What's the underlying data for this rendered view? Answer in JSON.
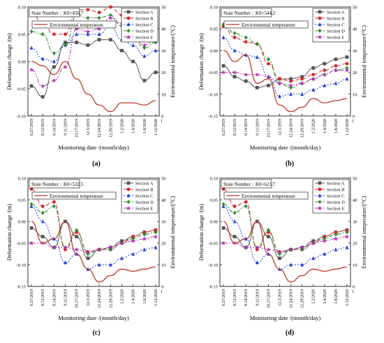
{
  "chart_data": [
    {
      "type": "line",
      "panel_label": "(a)",
      "station": "State Number :  K0+456.7",
      "xlabel": "Monitoring date /(month/day)",
      "ylabel": "Deformation change /(m)",
      "y2label": "Environmental temperature/(°C)",
      "categories": [
        "6.27/2019",
        "8.12/2019",
        "8.14/2019",
        "9.11/2019",
        "10.17/2019",
        "12.3/2019",
        "12.24/2019",
        "12.29/2019",
        "1.2/2020",
        "1.4/2020",
        "1.8/2020",
        "1.12/2020"
      ],
      "ylim": [
        -0.1,
        0.1
      ],
      "yticks": [
        "-0.10",
        "-0.05",
        "0.00",
        "0.05",
        "0.10"
      ],
      "y2lim": [
        0,
        50
      ],
      "y2ticks": [
        "0",
        "10",
        "20",
        "30",
        "40",
        "50"
      ],
      "x_end_label": "1",
      "series": [
        {
          "name": "Section A",
          "color": "#555555",
          "dash": "",
          "marker": "square",
          "axis": "left",
          "values": [
            -0.045,
            -0.065,
            -0.01,
            0.035,
            0.035,
            0.03,
            0.04,
            0.04,
            0.02,
            0.0,
            -0.035,
            -0.02
          ]
        },
        {
          "name": "Section B",
          "color": "#d62728",
          "dash": "6,3",
          "marker": "circle",
          "axis": "left",
          "values": [
            0.09,
            0.07,
            0.05,
            0.05,
            0.095,
            0.095,
            0.09,
            0.1,
            0.085,
            0.065,
            0.04,
            0.04
          ]
        },
        {
          "name": "Section C",
          "color": "#1f3fd6",
          "dash": "2,2",
          "marker": "triangle",
          "axis": "left",
          "values": [
            0.025,
            0.005,
            0.0,
            0.03,
            0.05,
            0.05,
            0.05,
            0.065,
            0.04,
            0.03,
            0.01,
            0.02
          ]
        },
        {
          "name": "Section D",
          "color": "#2e8b2e",
          "dash": "6,2,2,2",
          "marker": "diamond",
          "axis": "left",
          "values": [
            0.055,
            0.05,
            0.015,
            0.03,
            0.085,
            0.08,
            0.08,
            0.085,
            0.065,
            0.045,
            0.025,
            0.035
          ]
        },
        {
          "name": "Section E",
          "color": "#b030b0",
          "dash": "6,2,2,2,2,2",
          "marker": "star",
          "axis": "left",
          "values": [
            -0.015,
            -0.045,
            -0.035,
            -0.01,
            0.06,
            0.055,
            0.06,
            0.08,
            0.07,
            0.05,
            0.03,
            0.04
          ]
        },
        {
          "name": "Environmental temperature",
          "color": "#c0392b",
          "dash": "",
          "marker": "none",
          "axis": "right",
          "values": [
            25,
            23,
            19,
            25,
            17,
            10,
            5,
            2,
            6,
            6,
            5,
            7
          ]
        }
      ]
    },
    {
      "type": "line",
      "panel_label": "(b)",
      "station": "State Number :  K0+544.2",
      "xlabel": "Monitoring date /(month/day)",
      "ylabel": "Deformation change /(m)",
      "y2label": "Environmental temperature/(°C)",
      "categories": [
        "6.27/2019",
        "8.12/2019",
        "8.14/2019",
        "9.11/2019",
        "10.17/2019",
        "12.3/2019",
        "12.24/2019",
        "12.29/2019",
        "1.2/2020",
        "1.4/2020",
        "1.8/2020",
        "1.12/2020"
      ],
      "ylim": [
        -0.15,
        0.1
      ],
      "yticks": [
        "-0.15",
        "-0.10",
        "-0.05",
        "0.00",
        "0.05",
        "0.10"
      ],
      "y2lim": [
        0,
        50
      ],
      "y2ticks": [
        "0",
        "10",
        "20",
        "30",
        "40",
        "50"
      ],
      "x_end_label": "1",
      "series": [
        {
          "name": "Section A",
          "color": "#555555",
          "dash": "",
          "marker": "square",
          "axis": "left",
          "values": [
            -0.035,
            -0.06,
            -0.07,
            -0.085,
            -0.08,
            -0.065,
            -0.065,
            -0.06,
            -0.04,
            -0.03,
            -0.02,
            -0.015
          ]
        },
        {
          "name": "Section B",
          "color": "#d62728",
          "dash": "6,3",
          "marker": "circle",
          "axis": "left",
          "values": [
            0.055,
            0.03,
            0.02,
            0.015,
            -0.03,
            -0.065,
            -0.07,
            -0.065,
            -0.055,
            -0.045,
            -0.035,
            -0.03
          ]
        },
        {
          "name": "Section C",
          "color": "#1f3fd6",
          "dash": "2,2",
          "marker": "triangle",
          "axis": "left",
          "values": [
            0.03,
            0.0,
            -0.01,
            -0.015,
            -0.06,
            -0.105,
            -0.1,
            -0.1,
            -0.09,
            -0.08,
            -0.075,
            -0.065
          ]
        },
        {
          "name": "Section D",
          "color": "#2e8b2e",
          "dash": "6,2,2,2",
          "marker": "diamond",
          "axis": "left",
          "values": [
            0.06,
            0.04,
            0.03,
            0.015,
            -0.02,
            -0.075,
            -0.085,
            -0.075,
            -0.065,
            -0.055,
            -0.045,
            -0.04
          ]
        },
        {
          "name": "Section E",
          "color": "#b030b0",
          "dash": "6,2,2,2,2,2",
          "marker": "star",
          "axis": "left",
          "values": [
            -0.05,
            -0.05,
            -0.055,
            -0.055,
            -0.06,
            -0.075,
            -0.08,
            -0.075,
            -0.065,
            -0.055,
            -0.045,
            -0.045
          ]
        },
        {
          "name": "Environmental temperature",
          "color": "#c0392b",
          "dash": "",
          "marker": "none",
          "axis": "right",
          "values": [
            30,
            25,
            28,
            15,
            17,
            5,
            2,
            4,
            8,
            6,
            7,
            8
          ]
        }
      ]
    },
    {
      "type": "line",
      "panel_label": "(c)",
      "station": "State Number :  K0+532.5",
      "xlabel": "Monitoring date /(month/day)",
      "ylabel": "Deformation change /(m)",
      "y2label": "Environmental temperature/(°C)",
      "categories": [
        "6.27/2019",
        "8.12/2019",
        "8.14/2019",
        "9.11/2019",
        "10.17/2019",
        "12.3/2019",
        "12.24/2019",
        "12.29/2019",
        "1.2/2020",
        "1.4/2020",
        "1.8/2020",
        "1.12/2020"
      ],
      "ylim": [
        -0.15,
        0.1
      ],
      "yticks": [
        "-0.15",
        "-0.10",
        "-0.05",
        "0.00",
        "0.05",
        "0.10"
      ],
      "y2lim": [
        0,
        50
      ],
      "y2ticks": [
        "0",
        "10",
        "20",
        "30",
        "40",
        "50"
      ],
      "x_end_label": "1",
      "series": [
        {
          "name": "Section A",
          "color": "#555555",
          "dash": "",
          "marker": "square",
          "axis": "left",
          "values": [
            -0.015,
            -0.035,
            -0.06,
            0.0,
            -0.035,
            -0.085,
            -0.065,
            -0.06,
            -0.045,
            -0.035,
            -0.025,
            -0.02
          ]
        },
        {
          "name": "Section B",
          "color": "#d62728",
          "dash": "6,3",
          "marker": "circle",
          "axis": "left",
          "values": [
            0.075,
            0.035,
            0.045,
            -0.065,
            -0.025,
            -0.07,
            -0.065,
            -0.065,
            -0.05,
            -0.035,
            -0.025,
            -0.02
          ]
        },
        {
          "name": "Section C",
          "color": "#1f3fd6",
          "dash": "2,2",
          "marker": "triangle",
          "axis": "left",
          "values": [
            0.035,
            0.0,
            -0.04,
            -0.095,
            -0.075,
            -0.11,
            -0.1,
            -0.1,
            -0.085,
            -0.075,
            -0.065,
            -0.06
          ]
        },
        {
          "name": "Section D",
          "color": "#2e8b2e",
          "dash": "6,2,2,2",
          "marker": "diamond",
          "axis": "left",
          "values": [
            0.04,
            0.02,
            0.035,
            -0.06,
            -0.02,
            -0.075,
            -0.065,
            -0.065,
            -0.05,
            -0.04,
            -0.03,
            -0.025
          ]
        },
        {
          "name": "Section E",
          "color": "#b030b0",
          "dash": "6,2,2,2,2,2",
          "marker": "star",
          "axis": "left",
          "values": [
            -0.05,
            -0.05,
            -0.06,
            -0.06,
            -0.065,
            -0.07,
            -0.065,
            -0.06,
            -0.05,
            -0.045,
            -0.04,
            -0.035
          ]
        },
        {
          "name": "Environmental temperature",
          "color": "#c0392b",
          "dash": "",
          "marker": "none",
          "axis": "right",
          "values": [
            30,
            20,
            22,
            30,
            15,
            8,
            2,
            5,
            8,
            7,
            8,
            9
          ]
        }
      ]
    },
    {
      "type": "line",
      "panel_label": "(d)",
      "station": "State Number :  K0+621.7",
      "xlabel": "Monitoring date /(month/day)",
      "ylabel": "Deformation change /(m)",
      "y2label": "Environmental temperature/(°C)",
      "categories": [
        "6.27/2019",
        "8.12/2019",
        "8.14/2019",
        "9.11/2019",
        "10.17/2019",
        "12.3/2019",
        "12.24/2019",
        "12.29/2019",
        "1.2/2020",
        "1.4/2020",
        "1.8/2020",
        "1.12/2020"
      ],
      "ylim": [
        -0.15,
        0.1
      ],
      "yticks": [
        "-0.15",
        "-0.10",
        "-0.05",
        "0.00",
        "0.05",
        "0.10"
      ],
      "y2lim": [
        0,
        50
      ],
      "y2ticks": [
        "0",
        "10",
        "20",
        "30",
        "40",
        "50"
      ],
      "x_end_label": "1",
      "series": [
        {
          "name": "Section A",
          "color": "#555555",
          "dash": "",
          "marker": "square",
          "axis": "left",
          "values": [
            -0.015,
            -0.035,
            -0.06,
            0.0,
            -0.035,
            -0.085,
            -0.065,
            -0.06,
            -0.045,
            -0.035,
            -0.025,
            -0.02
          ]
        },
        {
          "name": "Section B",
          "color": "#d62728",
          "dash": "6,3",
          "marker": "circle",
          "axis": "left",
          "values": [
            0.075,
            0.035,
            0.045,
            -0.065,
            -0.025,
            -0.07,
            -0.065,
            -0.065,
            -0.05,
            -0.035,
            -0.025,
            -0.02
          ]
        },
        {
          "name": "Section C",
          "color": "#1f3fd6",
          "dash": "2,2",
          "marker": "triangle",
          "axis": "left",
          "values": [
            0.035,
            0.0,
            -0.04,
            -0.095,
            -0.075,
            -0.11,
            -0.1,
            -0.1,
            -0.085,
            -0.075,
            -0.065,
            -0.06
          ]
        },
        {
          "name": "Section D",
          "color": "#2e8b2e",
          "dash": "6,2,2,2",
          "marker": "diamond",
          "axis": "left",
          "values": [
            0.04,
            0.02,
            0.035,
            -0.06,
            -0.02,
            -0.075,
            -0.065,
            -0.065,
            -0.05,
            -0.04,
            -0.03,
            -0.025
          ]
        },
        {
          "name": "Section E",
          "color": "#b030b0",
          "dash": "6,2,2,2,2,2",
          "marker": "star",
          "axis": "left",
          "values": [
            -0.05,
            -0.05,
            -0.06,
            -0.06,
            -0.065,
            -0.07,
            -0.065,
            -0.06,
            -0.05,
            -0.045,
            -0.04,
            -0.035
          ]
        },
        {
          "name": "Environmental temperature",
          "color": "#c0392b",
          "dash": "",
          "marker": "none",
          "axis": "right",
          "values": [
            30,
            20,
            22,
            30,
            15,
            8,
            2,
            5,
            8,
            7,
            8,
            9
          ]
        }
      ]
    }
  ]
}
